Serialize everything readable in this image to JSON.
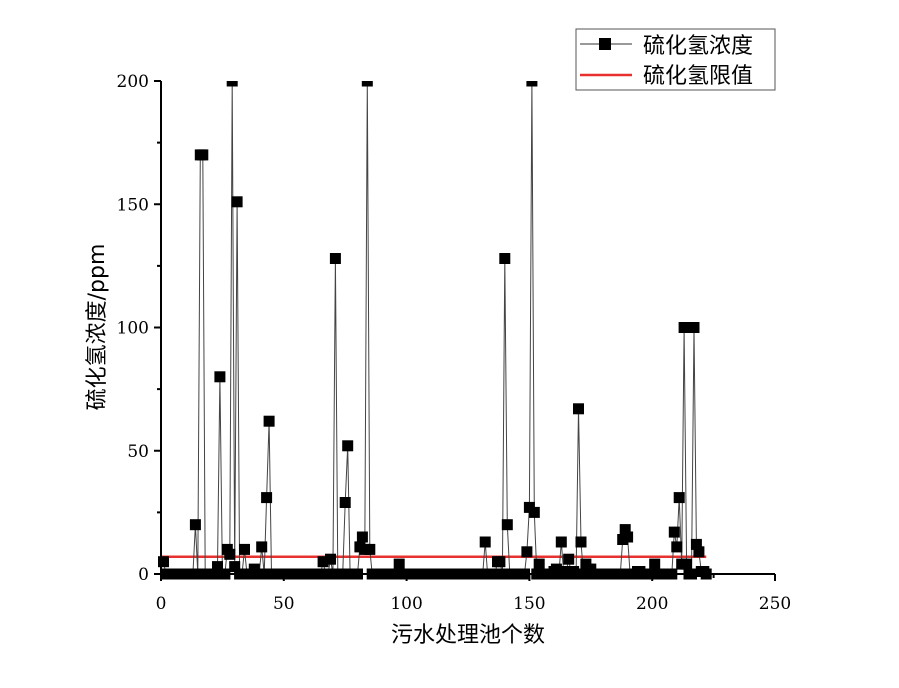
{
  "chart_data": {
    "type": "line",
    "title": "",
    "xlabel": "污水处理池个数",
    "ylabel": "硫化氢浓度/ppm",
    "xlim": [
      0,
      250
    ],
    "ylim": [
      0,
      200
    ],
    "x_ticks": [
      0,
      50,
      100,
      150,
      200,
      250
    ],
    "y_ticks": [
      0,
      50,
      100,
      150,
      200
    ],
    "x_minor_ticks": [
      25,
      75,
      125,
      175,
      225
    ],
    "y_minor_ticks": [
      25,
      75,
      125,
      175
    ],
    "grid": false,
    "legend_position": "top-right",
    "series": [
      {
        "name": "硫化氢浓度",
        "style": "line-with-square-markers",
        "color": "#000000",
        "points": [
          [
            1,
            5
          ],
          [
            2,
            0
          ],
          [
            3,
            0
          ],
          [
            4,
            0
          ],
          [
            5,
            0
          ],
          [
            6,
            0
          ],
          [
            7,
            0
          ],
          [
            8,
            0
          ],
          [
            9,
            0
          ],
          [
            10,
            0
          ],
          [
            11,
            0
          ],
          [
            12,
            0
          ],
          [
            13,
            0
          ],
          [
            14,
            20
          ],
          [
            15,
            0
          ],
          [
            16,
            170
          ],
          [
            17,
            170
          ],
          [
            18,
            0
          ],
          [
            19,
            0
          ],
          [
            20,
            0
          ],
          [
            21,
            0
          ],
          [
            22,
            0
          ],
          [
            23,
            3
          ],
          [
            24,
            80
          ],
          [
            25,
            0
          ],
          [
            26,
            0
          ],
          [
            27,
            10
          ],
          [
            28,
            8
          ],
          [
            29,
            200
          ],
          [
            30,
            3
          ],
          [
            31,
            151
          ],
          [
            32,
            0
          ],
          [
            33,
            0
          ],
          [
            34,
            10
          ],
          [
            35,
            0
          ],
          [
            36,
            0
          ],
          [
            37,
            0
          ],
          [
            38,
            2
          ],
          [
            39,
            0
          ],
          [
            40,
            0
          ],
          [
            41,
            11
          ],
          [
            42,
            0
          ],
          [
            43,
            31
          ],
          [
            44,
            62
          ],
          [
            45,
            0
          ],
          [
            46,
            0
          ],
          [
            47,
            0
          ],
          [
            48,
            0
          ],
          [
            49,
            0
          ],
          [
            50,
            0
          ],
          [
            51,
            0
          ],
          [
            52,
            0
          ],
          [
            53,
            0
          ],
          [
            54,
            0
          ],
          [
            55,
            0
          ],
          [
            56,
            0
          ],
          [
            57,
            0
          ],
          [
            58,
            0
          ],
          [
            59,
            0
          ],
          [
            60,
            0
          ],
          [
            61,
            0
          ],
          [
            62,
            0
          ],
          [
            63,
            0
          ],
          [
            64,
            0
          ],
          [
            65,
            0
          ],
          [
            66,
            5
          ],
          [
            67,
            0
          ],
          [
            68,
            0
          ],
          [
            69,
            6
          ],
          [
            70,
            0
          ],
          [
            71,
            128
          ],
          [
            72,
            0
          ],
          [
            73,
            0
          ],
          [
            74,
            0
          ],
          [
            75,
            29
          ],
          [
            76,
            52
          ],
          [
            77,
            0
          ],
          [
            78,
            0
          ],
          [
            79,
            0
          ],
          [
            80,
            0
          ],
          [
            81,
            11
          ],
          [
            82,
            15
          ],
          [
            83,
            10
          ],
          [
            84,
            200
          ],
          [
            85,
            10
          ],
          [
            86,
            0
          ],
          [
            87,
            0
          ],
          [
            88,
            0
          ],
          [
            89,
            0
          ],
          [
            90,
            0
          ],
          [
            91,
            0
          ],
          [
            92,
            0
          ],
          [
            93,
            0
          ],
          [
            94,
            0
          ],
          [
            95,
            0
          ],
          [
            96,
            0
          ],
          [
            97,
            4
          ],
          [
            98,
            0
          ],
          [
            99,
            0
          ],
          [
            100,
            0
          ],
          [
            101,
            0
          ],
          [
            102,
            0
          ],
          [
            103,
            0
          ],
          [
            104,
            0
          ],
          [
            105,
            0
          ],
          [
            106,
            0
          ],
          [
            107,
            0
          ],
          [
            108,
            0
          ],
          [
            109,
            0
          ],
          [
            110,
            0
          ],
          [
            111,
            0
          ],
          [
            112,
            0
          ],
          [
            113,
            0
          ],
          [
            114,
            0
          ],
          [
            115,
            0
          ],
          [
            116,
            0
          ],
          [
            117,
            0
          ],
          [
            118,
            0
          ],
          [
            119,
            0
          ],
          [
            120,
            0
          ],
          [
            121,
            0
          ],
          [
            122,
            0
          ],
          [
            123,
            0
          ],
          [
            124,
            0
          ],
          [
            125,
            0
          ],
          [
            126,
            0
          ],
          [
            127,
            0
          ],
          [
            128,
            0
          ],
          [
            129,
            0
          ],
          [
            130,
            0
          ],
          [
            131,
            0
          ],
          [
            132,
            13
          ],
          [
            133,
            0
          ],
          [
            134,
            0
          ],
          [
            135,
            0
          ],
          [
            136,
            0
          ],
          [
            137,
            5
          ],
          [
            138,
            5
          ],
          [
            139,
            0
          ],
          [
            140,
            128
          ],
          [
            141,
            20
          ],
          [
            142,
            0
          ],
          [
            143,
            0
          ],
          [
            144,
            0
          ],
          [
            145,
            0
          ],
          [
            146,
            0
          ],
          [
            147,
            0
          ],
          [
            148,
            0
          ],
          [
            149,
            9
          ],
          [
            150,
            27
          ],
          [
            151,
            200
          ],
          [
            152,
            25
          ],
          [
            153,
            0
          ],
          [
            154,
            4
          ],
          [
            155,
            0
          ],
          [
            156,
            0
          ],
          [
            157,
            0
          ],
          [
            158,
            0
          ],
          [
            159,
            0
          ],
          [
            160,
            1
          ],
          [
            161,
            2
          ],
          [
            162,
            0
          ],
          [
            163,
            13
          ],
          [
            164,
            0
          ],
          [
            165,
            1
          ],
          [
            166,
            6
          ],
          [
            167,
            0
          ],
          [
            168,
            1
          ],
          [
            169,
            0
          ],
          [
            170,
            67
          ],
          [
            171,
            13
          ],
          [
            172,
            0
          ],
          [
            173,
            4
          ],
          [
            174,
            2
          ],
          [
            175,
            2
          ],
          [
            176,
            0
          ],
          [
            177,
            0
          ],
          [
            178,
            0
          ],
          [
            179,
            0
          ],
          [
            180,
            0
          ],
          [
            181,
            0
          ],
          [
            182,
            0
          ],
          [
            183,
            0
          ],
          [
            184,
            0
          ],
          [
            185,
            0
          ],
          [
            186,
            0
          ],
          [
            187,
            0
          ],
          [
            188,
            14
          ],
          [
            189,
            18
          ],
          [
            190,
            15
          ],
          [
            191,
            0
          ],
          [
            192,
            0
          ],
          [
            193,
            0
          ],
          [
            194,
            1
          ],
          [
            195,
            1
          ],
          [
            196,
            0
          ],
          [
            197,
            0
          ],
          [
            198,
            0
          ],
          [
            199,
            0
          ],
          [
            200,
            0
          ],
          [
            201,
            4
          ],
          [
            202,
            0
          ],
          [
            203,
            0
          ],
          [
            204,
            0
          ],
          [
            205,
            0
          ],
          [
            206,
            0
          ],
          [
            207,
            0
          ],
          [
            208,
            0
          ],
          [
            209,
            17
          ],
          [
            210,
            11
          ],
          [
            211,
            31
          ],
          [
            212,
            4
          ],
          [
            213,
            100
          ],
          [
            214,
            4
          ],
          [
            215,
            0
          ],
          [
            216,
            0
          ],
          [
            217,
            100
          ],
          [
            218,
            12
          ],
          [
            219,
            9
          ],
          [
            220,
            1
          ],
          [
            221,
            1
          ],
          [
            222,
            0
          ]
        ]
      },
      {
        "name": "硫化氢限值",
        "style": "line",
        "color": "#e8312f",
        "points": [
          [
            0,
            7
          ],
          [
            222,
            7
          ]
        ]
      }
    ]
  },
  "legend": {
    "items": [
      {
        "label": "硫化氢浓度",
        "color": "#000000",
        "marker": "square"
      },
      {
        "label": "硫化氢限值",
        "color": "#e8312f",
        "marker": "none"
      }
    ]
  },
  "axes": {
    "x_title": "污水处理池个数",
    "y_title": "硫化氢浓度/ppm",
    "x_tick_labels": [
      "0",
      "50",
      "100",
      "150",
      "200",
      "250"
    ],
    "y_tick_labels": [
      "0",
      "50",
      "100",
      "150",
      "200"
    ]
  }
}
